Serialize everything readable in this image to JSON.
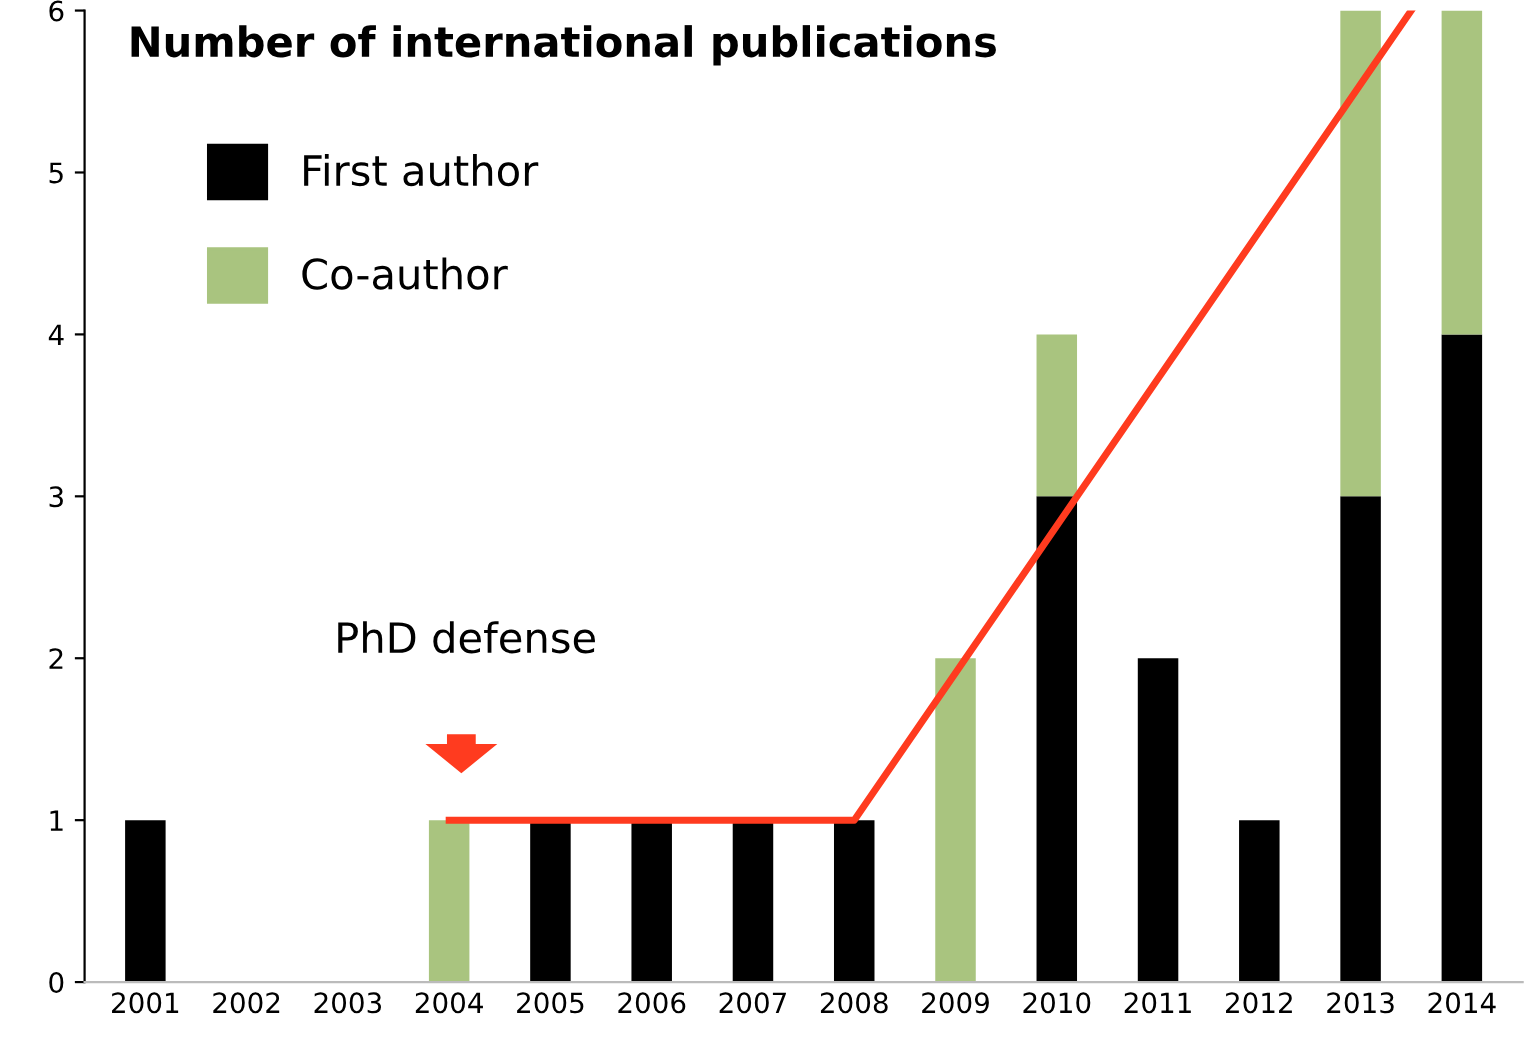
{
  "chart_data": {
    "type": "bar",
    "title": "Number of international publications",
    "stacked": true,
    "x": [
      2001,
      2002,
      2003,
      2004,
      2005,
      2006,
      2007,
      2008,
      2009,
      2010,
      2011,
      2012,
      2013,
      2014
    ],
    "xlim": [
      2000.4,
      2014.6
    ],
    "xticks": [
      2001,
      2002,
      2003,
      2004,
      2005,
      2006,
      2007,
      2008,
      2009,
      2010,
      2011,
      2012,
      2013,
      2014
    ],
    "ylim": [
      0,
      6
    ],
    "yticks": [
      0,
      1,
      2,
      3,
      4,
      5,
      6
    ],
    "grid": false,
    "legend": "top left",
    "series": [
      {
        "name": "First author",
        "color": "#000000",
        "values": [
          1,
          0,
          0,
          0,
          1,
          1,
          1,
          1,
          0,
          3,
          2,
          1,
          3,
          4
        ]
      },
      {
        "name": "Co-author",
        "color": "#a9c47f",
        "values": [
          0,
          0,
          0,
          1,
          0,
          0,
          0,
          0,
          2,
          1,
          0,
          0,
          3,
          2
        ]
      },
      {
        "type": "line",
        "color": "#ff3b1f",
        "x": [
          2004,
          2008,
          2013.5
        ],
        "values": [
          1,
          1,
          6
        ]
      }
    ],
    "annotations": [
      "PhD defense"
    ]
  }
}
